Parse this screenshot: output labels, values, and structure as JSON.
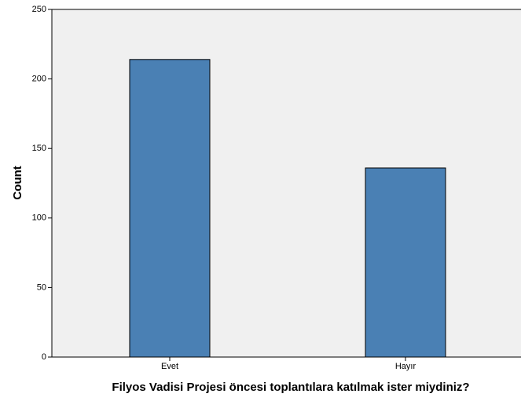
{
  "chart_data": {
    "type": "bar",
    "x_label": "Filyos Vadisi Projesi öncesi toplantılara katılmak ister miydiniz?",
    "y_label": "Count",
    "categories": [
      "Evet",
      "Hayır"
    ],
    "values": [
      214,
      136
    ],
    "color": "#4a80b4",
    "ylim": [
      0,
      250
    ],
    "yticks": [
      0,
      50,
      100,
      150,
      200,
      250
    ],
    "grid": false
  }
}
